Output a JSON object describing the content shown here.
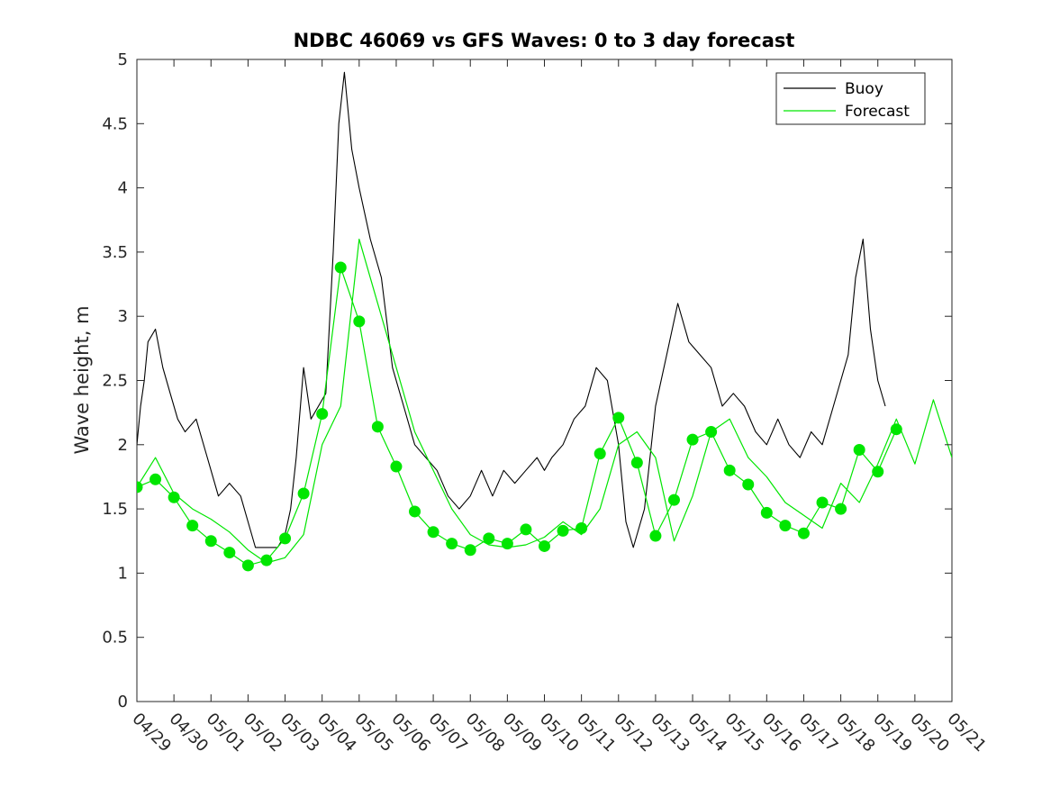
{
  "chart_data": {
    "type": "line",
    "title": "NDBC 46069 vs GFS Waves: 0 to 3 day forecast",
    "xlabel": "",
    "ylabel": "Wave height, m",
    "x_unit": "day of record (0 = 04/29 00:00)",
    "xlim": [
      0,
      22
    ],
    "ylim": [
      0,
      5
    ],
    "yticks": [
      0,
      0.5,
      1,
      1.5,
      2,
      2.5,
      3,
      3.5,
      4,
      4.5,
      5
    ],
    "yticklabels": [
      "0",
      "0.5",
      "1",
      "1.5",
      "2",
      "2.5",
      "3",
      "3.5",
      "4",
      "4.5",
      "5"
    ],
    "xticks": [
      0,
      1,
      2,
      3,
      4,
      5,
      6,
      7,
      8,
      9,
      10,
      11,
      12,
      13,
      14,
      15,
      16,
      17,
      18,
      19,
      20,
      21,
      22
    ],
    "xticklabels": [
      "04/29",
      "04/30",
      "05/01",
      "05/02",
      "05/03",
      "05/04",
      "05/05",
      "05/06",
      "05/07",
      "05/08",
      "05/09",
      "05/10",
      "05/11",
      "05/12",
      "05/13",
      "05/14",
      "05/15",
      "05/16",
      "05/17",
      "05/18",
      "05/19",
      "05/20",
      "05/21"
    ],
    "grid": false,
    "legend_position": "top-right",
    "legend": [
      {
        "label": "Buoy",
        "color": "#000000"
      },
      {
        "label": "Forecast",
        "color": "#00e600"
      }
    ],
    "series": [
      {
        "name": "Buoy",
        "color": "#000000",
        "x": [
          0,
          0.1,
          0.2,
          0.3,
          0.5,
          0.7,
          0.9,
          1.1,
          1.3,
          1.6,
          1.9,
          2.2,
          2.5,
          2.8,
          3.0,
          3.2,
          3.5,
          3.8,
          4.0,
          4.15,
          4.3,
          4.5,
          4.7,
          4.9,
          5.1,
          5.3,
          5.45,
          5.6,
          5.8,
          6.0,
          6.3,
          6.6,
          6.9,
          7.2,
          7.5,
          7.8,
          8.1,
          8.4,
          8.7,
          9.0,
          9.3,
          9.6,
          9.9,
          10.2,
          10.5,
          10.8,
          11.0,
          11.2,
          11.5,
          11.8,
          12.1,
          12.4,
          12.7,
          13.0,
          13.2,
          13.4,
          13.7,
          14.0,
          14.3,
          14.6,
          14.9,
          15.2,
          15.5,
          15.8,
          16.1,
          16.4,
          16.7,
          17.0,
          17.3,
          17.6,
          17.9,
          18.2,
          18.5,
          18.8,
          19.0,
          19.2,
          19.4,
          19.6,
          19.8,
          20.0,
          20.2
        ],
        "y": [
          2.0,
          2.3,
          2.5,
          2.8,
          2.9,
          2.6,
          2.4,
          2.2,
          2.1,
          2.2,
          1.9,
          1.6,
          1.7,
          1.6,
          1.4,
          1.2,
          1.2,
          1.2,
          1.3,
          1.5,
          1.9,
          2.6,
          2.2,
          2.3,
          2.4,
          3.5,
          4.5,
          4.9,
          4.3,
          4.0,
          3.6,
          3.3,
          2.6,
          2.3,
          2.0,
          1.9,
          1.8,
          1.6,
          1.5,
          1.6,
          1.8,
          1.6,
          1.8,
          1.7,
          1.8,
          1.9,
          1.8,
          1.9,
          2.0,
          2.2,
          2.3,
          2.6,
          2.5,
          2.0,
          1.4,
          1.2,
          1.5,
          2.3,
          2.7,
          3.1,
          2.8,
          2.7,
          2.6,
          2.3,
          2.4,
          2.3,
          2.1,
          2.0,
          2.2,
          2.0,
          1.9,
          2.1,
          2.0,
          2.3,
          2.5,
          2.7,
          3.3,
          3.6,
          2.9,
          2.5,
          2.3
        ]
      },
      {
        "name": "Forecast",
        "color": "#00e600",
        "x": [
          0,
          0.5,
          1.0,
          1.5,
          2.0,
          2.5,
          3.0,
          3.5,
          4.0,
          4.5,
          5.0,
          5.5,
          6.0,
          6.5,
          7.0,
          7.5,
          8.0,
          8.5,
          9.0,
          9.5,
          10.0,
          10.5,
          11.0,
          11.5,
          12.0,
          12.5,
          13.0,
          13.5,
          14.0,
          14.5,
          15.0,
          15.5,
          16.0,
          16.5,
          17.0,
          17.5,
          18.0,
          18.5,
          19.0,
          19.5,
          20.0,
          20.5,
          21.0,
          21.5,
          22.0
        ],
        "y": [
          1.67,
          1.9,
          1.62,
          1.5,
          1.42,
          1.32,
          1.18,
          1.08,
          1.12,
          1.3,
          2.0,
          2.3,
          3.6,
          3.1,
          2.6,
          2.1,
          1.8,
          1.5,
          1.3,
          1.22,
          1.2,
          1.22,
          1.28,
          1.4,
          1.3,
          1.5,
          2.0,
          2.1,
          1.9,
          1.25,
          1.6,
          2.1,
          2.2,
          1.9,
          1.75,
          1.55,
          1.45,
          1.35,
          1.7,
          1.55,
          1.85,
          2.2,
          1.85,
          2.35,
          1.9
        ]
      },
      {
        "name": "Forecast",
        "color": "#00e600",
        "markers": true,
        "x": [
          0,
          0.5,
          1.0,
          1.5,
          2.0,
          2.5,
          3.0,
          3.5,
          4.0,
          4.5,
          5.0,
          5.5,
          6.0,
          6.5,
          7.0,
          7.5,
          8.0,
          8.5,
          9.0,
          9.5,
          10.0,
          10.5,
          11.0,
          11.5,
          12.0,
          12.5,
          13.0,
          13.5,
          14.0,
          14.5,
          15.0,
          15.5,
          16.0,
          16.5,
          17.0,
          17.5,
          18.0,
          18.5,
          19.0,
          19.5,
          20.0,
          20.5
        ],
        "y": [
          1.67,
          1.73,
          1.59,
          1.37,
          1.25,
          1.16,
          1.06,
          1.1,
          1.27,
          1.62,
          2.24,
          3.38,
          2.96,
          2.14,
          1.83,
          1.48,
          1.32,
          1.23,
          1.18,
          1.27,
          1.23,
          1.34,
          1.21,
          1.33,
          1.35,
          1.93,
          2.21,
          1.86,
          1.29,
          1.57,
          2.04,
          2.1,
          1.8,
          1.69,
          1.47,
          1.37,
          1.31,
          1.55,
          1.5,
          1.96,
          1.79,
          2.12
        ]
      }
    ]
  }
}
